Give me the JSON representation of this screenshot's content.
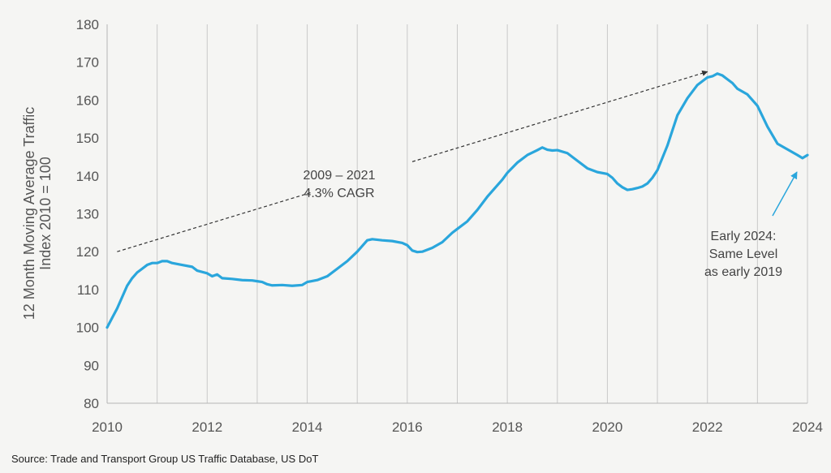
{
  "chart_data": {
    "type": "line",
    "title": "",
    "ylabel_line1": "12 Month Moving Average Traffic",
    "ylabel_line2": "Index 2010  = 100",
    "xlabel": "",
    "xlim": [
      2010,
      2024
    ],
    "ylim": [
      80,
      180
    ],
    "x_ticks": [
      "2010",
      "2012",
      "2014",
      "2016",
      "2018",
      "2020",
      "2022",
      "2024"
    ],
    "y_ticks": [
      "80",
      "90",
      "100",
      "110",
      "120",
      "130",
      "140",
      "150",
      "160",
      "170",
      "180"
    ],
    "grid": "vertical",
    "colors": {
      "line": "#2aa6dc",
      "background": "#f5f5f3",
      "grid": "#c9c9c9",
      "annotation": "#444444",
      "arrow2": "#2aa6dc"
    },
    "series": [
      {
        "x": [
          2010.0,
          2010.1,
          2010.2,
          2010.3,
          2010.4,
          2010.5,
          2010.6,
          2010.7,
          2010.8,
          2010.9,
          2011.0,
          2011.1,
          2011.2,
          2011.3,
          2011.5,
          2011.7,
          2011.8,
          2012.0,
          2012.1,
          2012.2,
          2012.3,
          2012.5,
          2012.7,
          2012.9,
          2013.0,
          2013.1,
          2013.2,
          2013.3,
          2013.5,
          2013.7,
          2013.9,
          2014.0,
          2014.2,
          2014.4,
          2014.6,
          2014.8,
          2015.0,
          2015.1,
          2015.2,
          2015.3,
          2015.5,
          2015.7,
          2015.9,
          2016.0,
          2016.1,
          2016.2,
          2016.3,
          2016.5,
          2016.7,
          2016.9,
          2017.0,
          2017.2,
          2017.4,
          2017.6,
          2017.8,
          2017.9,
          2018.0,
          2018.2,
          2018.4,
          2018.6,
          2018.7,
          2018.8,
          2018.9,
          2019.0,
          2019.2,
          2019.4,
          2019.6,
          2019.8,
          2020.0,
          2020.1,
          2020.2,
          2020.3,
          2020.4,
          2020.5,
          2020.6,
          2020.7,
          2020.8,
          2020.9,
          2021.0,
          2021.2,
          2021.3,
          2021.4,
          2021.6,
          2021.8,
          2022.0,
          2022.1,
          2022.2,
          2022.3,
          2022.4,
          2022.5,
          2022.6,
          2022.8,
          2023.0,
          2023.2,
          2023.4,
          2023.6,
          2023.8,
          2023.9,
          2024.0
        ],
        "values": [
          100,
          102.5,
          105,
          108,
          111,
          113,
          114.5,
          115.5,
          116.5,
          117,
          117,
          117.5,
          117.5,
          117,
          116.5,
          116,
          115,
          114.3,
          113.5,
          114,
          113,
          112.8,
          112.5,
          112.4,
          112.2,
          112,
          111.4,
          111.1,
          111.2,
          111,
          111.2,
          112,
          112.5,
          113.5,
          115.5,
          117.5,
          120,
          121.5,
          123,
          123.3,
          123,
          122.8,
          122.3,
          121.7,
          120.3,
          119.9,
          120,
          121,
          122.5,
          125,
          126,
          128,
          131,
          134.5,
          137.5,
          139,
          140.8,
          143.5,
          145.5,
          146.8,
          147.5,
          146.9,
          146.7,
          146.8,
          146,
          144,
          142,
          141,
          140.5,
          139.5,
          138,
          137,
          136.3,
          136.5,
          136.8,
          137.2,
          138,
          139.5,
          141.5,
          148,
          152,
          156,
          160.5,
          164,
          166,
          166.3,
          167,
          166.5,
          165.5,
          164.5,
          163,
          161.5,
          158.5,
          153,
          148.5,
          147,
          145.5,
          144.7,
          145.5
        ]
      }
    ],
    "annotations": [
      {
        "id": "cagr",
        "lines": [
          "2009 – 2021",
          "4.3% CAGR"
        ]
      },
      {
        "id": "early2024",
        "lines": [
          "Early 2024:",
          "Same Level",
          "as early 2019"
        ]
      }
    ],
    "source": "Source: Trade and Transport Group US Traffic Database, US DoT"
  }
}
